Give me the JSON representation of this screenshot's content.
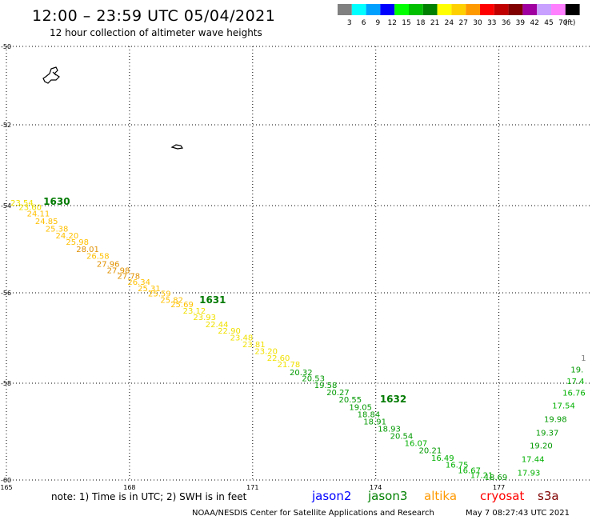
{
  "header": {
    "title": "12:00 – 23:59 UTC 05/04/2021",
    "subtitle": "12 hour collection of altimeter wave heights"
  },
  "legend": {
    "unit": "(ft)",
    "bins": [
      {
        "label": "3",
        "color": "#808080"
      },
      {
        "label": "6",
        "color": "#00ffff"
      },
      {
        "label": "9",
        "color": "#00a0ff"
      },
      {
        "label": "12",
        "color": "#0000ff"
      },
      {
        "label": "15",
        "color": "#00ff00"
      },
      {
        "label": "18",
        "color": "#00c000"
      },
      {
        "label": "21",
        "color": "#008000"
      },
      {
        "label": "24",
        "color": "#ffff00"
      },
      {
        "label": "27",
        "color": "#ffd000"
      },
      {
        "label": "30",
        "color": "#ff9900"
      },
      {
        "label": "33",
        "color": "#ff0000"
      },
      {
        "label": "36",
        "color": "#c00000"
      },
      {
        "label": "39",
        "color": "#800000"
      },
      {
        "label": "42",
        "color": "#a000a0"
      },
      {
        "label": "45",
        "color": "#c8a0ff"
      },
      {
        "label": "70",
        "color": "#ff80ff"
      },
      {
        "label": "",
        "color": "#000000"
      }
    ]
  },
  "chart_data": {
    "type": "scatter",
    "title": "12:00 – 23:59 UTC 05/04/2021",
    "subtitle": "12 hour collection of altimeter wave heights",
    "xlim": [
      165,
      179.2
    ],
    "ylim": [
      -60,
      -50
    ],
    "x_ticks": [
      165,
      168,
      171,
      174,
      177
    ],
    "x_tick_labels": [
      "165",
      "168",
      "171",
      "174",
      "177"
    ],
    "y_ticks": [
      -50,
      -52,
      -54,
      -56,
      -58,
      -60
    ],
    "y_tick_labels": [
      "-50",
      "-52",
      "-54",
      "-56",
      "-58",
      "-60"
    ],
    "grid": true,
    "pass_labels": [
      {
        "text": "1630",
        "lon": 165.9,
        "lat": -53.98
      },
      {
        "text": "1631",
        "lon": 169.7,
        "lat": -56.23
      },
      {
        "text": "1632",
        "lon": 174.1,
        "lat": -58.4
      }
    ],
    "series": [
      {
        "name": "jason3",
        "points": [
          {
            "lon": 165.1,
            "lat": -54.0,
            "v": "23.54"
          },
          {
            "lon": 165.3,
            "lat": -54.1,
            "v": "23.60"
          },
          {
            "lon": 165.5,
            "lat": -54.25,
            "v": "24.11"
          },
          {
            "lon": 165.7,
            "lat": -54.42,
            "v": "24.85"
          },
          {
            "lon": 165.95,
            "lat": -54.6,
            "v": "25.38"
          },
          {
            "lon": 166.2,
            "lat": -54.75,
            "v": "24.20"
          },
          {
            "lon": 166.45,
            "lat": -54.9,
            "v": "25.98"
          },
          {
            "lon": 166.7,
            "lat": -55.06,
            "v": "28.01"
          },
          {
            "lon": 166.95,
            "lat": -55.22,
            "v": "26.58"
          },
          {
            "lon": 167.2,
            "lat": -55.4,
            "v": "27.96"
          },
          {
            "lon": 167.45,
            "lat": -55.55,
            "v": "27.98"
          },
          {
            "lon": 167.7,
            "lat": -55.68,
            "v": "27.78"
          },
          {
            "lon": 167.95,
            "lat": -55.82,
            "v": "26.34"
          },
          {
            "lon": 168.2,
            "lat": -55.96,
            "v": "25.31"
          },
          {
            "lon": 168.45,
            "lat": -56.08,
            "v": "25.59"
          },
          {
            "lon": 168.75,
            "lat": -56.22,
            "v": "25.82"
          },
          {
            "lon": 169.0,
            "lat": -56.32,
            "v": "25.69"
          },
          {
            "lon": 169.3,
            "lat": -56.46,
            "v": "23.12"
          },
          {
            "lon": 169.55,
            "lat": -56.6,
            "v": "23.93"
          },
          {
            "lon": 169.85,
            "lat": -56.76,
            "v": "22.44"
          },
          {
            "lon": 170.15,
            "lat": -56.9,
            "v": "22.90"
          },
          {
            "lon": 170.45,
            "lat": -57.05,
            "v": "23.48"
          },
          {
            "lon": 170.75,
            "lat": -57.2,
            "v": "23.81"
          },
          {
            "lon": 171.05,
            "lat": -57.35,
            "v": "23.20"
          },
          {
            "lon": 171.35,
            "lat": -57.5,
            "v": "22.60"
          },
          {
            "lon": 171.6,
            "lat": -57.65,
            "v": "21.78"
          },
          {
            "lon": 171.9,
            "lat": -57.82,
            "v": "20.32"
          },
          {
            "lon": 172.2,
            "lat": -57.96,
            "v": "20.53"
          },
          {
            "lon": 172.5,
            "lat": -58.1,
            "v": "19.58"
          },
          {
            "lon": 172.8,
            "lat": -58.25,
            "v": "20.27"
          },
          {
            "lon": 173.1,
            "lat": -58.4,
            "v": "20.55"
          },
          {
            "lon": 173.35,
            "lat": -58.55,
            "v": "19.05"
          },
          {
            "lon": 173.55,
            "lat": -58.7,
            "v": "18.84"
          },
          {
            "lon": 173.7,
            "lat": -58.85,
            "v": "18.91"
          },
          {
            "lon": 174.05,
            "lat": -59.0,
            "v": "18.93"
          },
          {
            "lon": 174.35,
            "lat": -59.15,
            "v": "20.54"
          },
          {
            "lon": 174.7,
            "lat": -59.3,
            "v": "16.07"
          },
          {
            "lon": 175.05,
            "lat": -59.45,
            "v": "20.21"
          },
          {
            "lon": 175.35,
            "lat": -59.6,
            "v": "16.49"
          },
          {
            "lon": 175.7,
            "lat": -59.74,
            "v": "16.75"
          },
          {
            "lon": 176.0,
            "lat": -59.86,
            "v": "16.67"
          },
          {
            "lon": 176.3,
            "lat": -59.96,
            "v": "17.21"
          },
          {
            "lon": 176.65,
            "lat": -60.04,
            "v": "18.69"
          },
          {
            "lon": 177.45,
            "lat": -59.91,
            "v": "17.93"
          },
          {
            "lon": 177.55,
            "lat": -59.63,
            "v": "17.44"
          },
          {
            "lon": 177.75,
            "lat": -59.35,
            "v": "19.20"
          },
          {
            "lon": 177.9,
            "lat": -59.08,
            "v": "19.37"
          },
          {
            "lon": 178.1,
            "lat": -58.8,
            "v": "19.98"
          },
          {
            "lon": 178.3,
            "lat": -58.52,
            "v": "17.54"
          },
          {
            "lon": 178.55,
            "lat": -58.26,
            "v": "16.76"
          },
          {
            "lon": 178.65,
            "lat": -58.02,
            "v": "17.4"
          },
          {
            "lon": 178.75,
            "lat": -57.76,
            "v": "19."
          },
          {
            "lon": 179.0,
            "lat": -57.5,
            "v": "1"
          }
        ]
      }
    ]
  },
  "footer": {
    "note": "note: 1) Time is in UTC; 2) SWH is in feet",
    "satellites": [
      {
        "name": "jason2",
        "color": "#0000ff"
      },
      {
        "name": "jason3",
        "color": "#008000"
      },
      {
        "name": "altika",
        "color": "#ff9900"
      },
      {
        "name": "cryosat",
        "color": "#ff0000"
      },
      {
        "name": "s3a",
        "color": "#800000"
      }
    ],
    "credit": "NOAA/NESDIS Center for Satellite Applications and Research",
    "timestamp": "May  7 08:27:43 UTC 2021"
  }
}
